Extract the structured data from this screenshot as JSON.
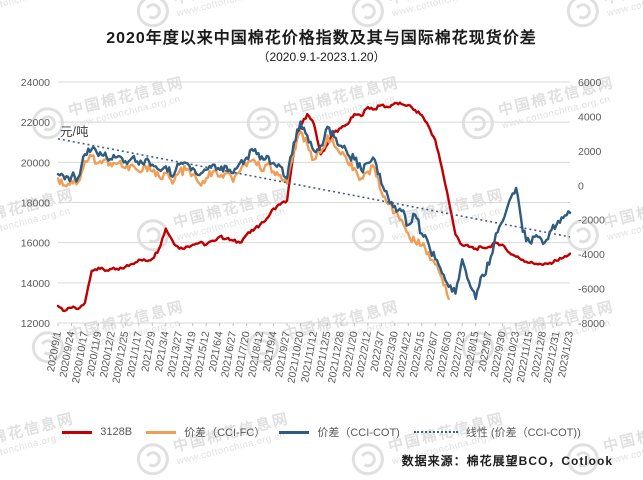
{
  "title": "2020年度以来中国棉花价格指数及其与国际棉花现货价差",
  "subtitle": "（2020.9.1-2023.1.20）",
  "source_note": "数据来源：棉花展望BCO，Cotlook",
  "watermark": {
    "name": "中国棉花信息网",
    "url": "www.cottonchina.org.cn"
  },
  "chart_data": {
    "type": "line",
    "title": "2020年度以来中国棉花价格指数及其与国际棉花现货价差",
    "subtitle": "（2020.9.1-2023.1.20）",
    "grid": "horizontal",
    "legend_position": "bottom",
    "x_tick_labels": [
      "2020/9/1",
      "2020/9/24",
      "2020/10/17",
      "2020/11/9",
      "2020/12/2",
      "2020/12/25",
      "2021/1/17",
      "2021/2/9",
      "2021/3/4",
      "2021/3/27",
      "2021/4/19",
      "2021/5/12",
      "2021/6/4",
      "2021/6/27",
      "2021/7/20",
      "2021/8/12",
      "2021/9/4",
      "2021/9/27",
      "2021/10/20",
      "2021/11/12",
      "2021/12/5",
      "2021/12/28",
      "2022/1/20",
      "2022/2/12",
      "2022/3/7",
      "2022/3/30",
      "2022/4/22",
      "2022/5/15",
      "2022/6/7",
      "2022/6/30",
      "2022/7/23",
      "2022/8/15",
      "2022/9/7",
      "2022/9/30",
      "2022/10/23",
      "2022/11/15",
      "2022/12/8",
      "2022/12/31",
      "2023/1/23"
    ],
    "left_axis": {
      "label": "元/吨",
      "min": 12000,
      "max": 24000,
      "ticks": [
        24000,
        22000,
        20000,
        18000,
        16000,
        14000,
        12000
      ]
    },
    "right_axis": {
      "min": -8000,
      "max": 6000,
      "ticks": [
        6000,
        4000,
        2000,
        0,
        -2000,
        -4000,
        -6000,
        -8000
      ]
    },
    "sample_step_ticks": 0.5,
    "series": [
      {
        "name": "3128B",
        "axis": "left",
        "color": "#c00000",
        "style": "solid",
        "noise": 80,
        "values": [
          12850,
          12600,
          12750,
          12700,
          13000,
          14600,
          14750,
          14600,
          14700,
          14650,
          14800,
          14950,
          15150,
          15100,
          15200,
          15700,
          16700,
          16100,
          15700,
          15800,
          15900,
          16000,
          15900,
          16100,
          16300,
          16200,
          16100,
          16000,
          16400,
          16600,
          16900,
          17200,
          17700,
          17900,
          18100,
          20500,
          21800,
          22400,
          21900,
          20400,
          20900,
          21500,
          21700,
          21900,
          22400,
          22300,
          22750,
          22650,
          22850,
          22750,
          22950,
          22900,
          22850,
          22600,
          22350,
          21800,
          21100,
          19700,
          18100,
          16400,
          15880,
          15800,
          15700,
          15750,
          15800,
          16000,
          15900,
          15500,
          15300,
          15150,
          15000,
          14950,
          14900,
          15000,
          15100,
          15250,
          15450
        ]
      },
      {
        "name": "价差（CCI-FC）",
        "axis": "right",
        "color": "#f09e55",
        "style": "solid",
        "noise": 260,
        "values": [
          400,
          0,
          250,
          200,
          1400,
          1700,
          1300,
          1500,
          1100,
          1300,
          1000,
          1200,
          800,
          1100,
          800,
          500,
          700,
          100,
          800,
          900,
          600,
          100,
          400,
          800,
          500,
          700,
          200,
          800,
          1100,
          1500,
          1000,
          1200,
          800,
          600,
          100,
          2000,
          3100,
          2400,
          1500,
          1900,
          2900,
          2300,
          1800,
          1300,
          1000,
          400,
          800,
          1000,
          -400,
          -1100,
          -1600,
          -2000,
          -2800,
          -3300,
          -3500,
          -3900,
          -4600,
          -5400,
          -6600,
          null,
          null,
          null,
          null,
          null,
          null,
          null,
          null,
          null,
          null,
          null,
          null,
          null,
          null,
          null,
          null,
          null,
          null
        ]
      },
      {
        "name": "价差（CCI-COT)",
        "axis": "right",
        "color": "#2f5b7f",
        "style": "solid",
        "noise": 260,
        "values": [
          650,
          350,
          500,
          450,
          1800,
          2100,
          1700,
          1900,
          1500,
          1700,
          1400,
          1600,
          1200,
          1500,
          1200,
          900,
          1100,
          500,
          1200,
          1300,
          1000,
          600,
          900,
          1200,
          900,
          1100,
          700,
          1300,
          1600,
          2000,
          1500,
          1700,
          1300,
          1100,
          400,
          2500,
          3700,
          2900,
          2000,
          2300,
          3400,
          2800,
          2300,
          1800,
          1500,
          900,
          1300,
          1500,
          100,
          -700,
          -1200,
          -1500,
          -2300,
          -1700,
          -2800,
          -3400,
          -4300,
          -5100,
          -5900,
          -6300,
          -4300,
          -5600,
          -6600,
          -5200,
          -4600,
          -2800,
          -2100,
          -900,
          -150,
          -2700,
          -3300,
          -2900,
          -3400,
          -2700,
          -2300,
          -1900,
          -1600
        ]
      },
      {
        "name": "线性 (价差（CCI-COT))",
        "axis": "right",
        "color": "#44607f",
        "style": "dotted",
        "trend": {
          "start": 2700,
          "end": -3000
        }
      }
    ]
  }
}
